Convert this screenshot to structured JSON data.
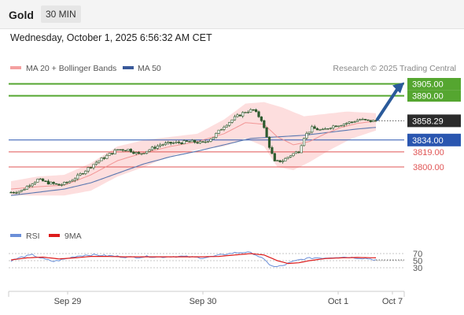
{
  "header": {
    "asset": "Gold",
    "timeframe": "30 MIN"
  },
  "datetime": "Wednesday, October 1, 2025 6:56:32 AM CET",
  "legend": {
    "ma20": "MA 20 + Bollinger Bands",
    "ma50": "MA 50",
    "credit": "Research © 2025 Trading Central"
  },
  "rsi_legend": {
    "rsi": "RSI",
    "ma": "9MA"
  },
  "colors": {
    "candle": "#2e5a2e",
    "bollinger": "#fcd3d3",
    "ma20": "#f08a8a",
    "ma50": "#5a78b0",
    "target": "#55a630",
    "support": "#e05555",
    "pivot": "#2a56b0",
    "arrow": "#2a5a9a",
    "rsi": "#6b8fd8",
    "rsi_ma": "#dd1c1c"
  },
  "chart_data": [
    {
      "type": "candlestick",
      "x_labels": [
        "Sep 29",
        "Sep 30",
        "Oct 1",
        "Oct 7"
      ],
      "ylim": [
        3755,
        3920
      ],
      "levels": [
        {
          "value": 3905.0,
          "label": "3905.00",
          "kind": "target"
        },
        {
          "value": 3890.0,
          "label": "3890.00",
          "kind": "target"
        },
        {
          "value": 3858.29,
          "label": "3858.29",
          "kind": "last"
        },
        {
          "value": 3834.0,
          "label": "3834.00",
          "kind": "pivot"
        },
        {
          "value": 3819.0,
          "label": "3819.00",
          "kind": "support"
        },
        {
          "value": 3800.0,
          "label": "3800.00",
          "kind": "support"
        }
      ],
      "close_anchors": [
        [
          0,
          3768
        ],
        [
          4,
          3770
        ],
        [
          7,
          3778
        ],
        [
          10,
          3784
        ],
        [
          14,
          3780
        ],
        [
          18,
          3777
        ],
        [
          21,
          3780
        ],
        [
          25,
          3788
        ],
        [
          28,
          3796
        ],
        [
          32,
          3806
        ],
        [
          36,
          3814
        ],
        [
          40,
          3822
        ],
        [
          44,
          3822
        ],
        [
          48,
          3816
        ],
        [
          52,
          3822
        ],
        [
          56,
          3828
        ],
        [
          60,
          3830
        ],
        [
          64,
          3831
        ],
        [
          68,
          3832
        ],
        [
          72,
          3830
        ],
        [
          76,
          3838
        ],
        [
          80,
          3852
        ],
        [
          84,
          3862
        ],
        [
          88,
          3870
        ],
        [
          91,
          3872
        ],
        [
          94,
          3860
        ],
        [
          97,
          3826
        ],
        [
          99,
          3806
        ],
        [
          102,
          3808
        ],
        [
          105,
          3815
        ],
        [
          108,
          3820
        ],
        [
          110,
          3838
        ],
        [
          113,
          3849
        ],
        [
          117,
          3846
        ],
        [
          120,
          3851
        ],
        [
          124,
          3854
        ],
        [
          128,
          3857
        ],
        [
          131,
          3860
        ],
        [
          134,
          3858
        ],
        [
          137,
          3858
        ]
      ],
      "ma20_points": [
        [
          0,
          3772
        ],
        [
          10,
          3775
        ],
        [
          20,
          3777
        ],
        [
          30,
          3790
        ],
        [
          40,
          3808
        ],
        [
          50,
          3818
        ],
        [
          60,
          3826
        ],
        [
          70,
          3832
        ],
        [
          80,
          3842
        ],
        [
          88,
          3856
        ],
        [
          95,
          3854
        ],
        [
          100,
          3838
        ],
        [
          106,
          3828
        ],
        [
          112,
          3832
        ],
        [
          118,
          3842
        ],
        [
          124,
          3850
        ],
        [
          130,
          3855
        ],
        [
          137,
          3858
        ]
      ],
      "ma50_points": [
        [
          0,
          3764
        ],
        [
          10,
          3768
        ],
        [
          20,
          3772
        ],
        [
          30,
          3780
        ],
        [
          40,
          3792
        ],
        [
          50,
          3804
        ],
        [
          60,
          3813
        ],
        [
          70,
          3820
        ],
        [
          80,
          3828
        ],
        [
          90,
          3836
        ],
        [
          100,
          3838
        ],
        [
          110,
          3840
        ],
        [
          120,
          3844
        ],
        [
          130,
          3848
        ],
        [
          137,
          3850
        ]
      ],
      "bb_upper": [
        [
          0,
          3782
        ],
        [
          10,
          3788
        ],
        [
          20,
          3790
        ],
        [
          30,
          3805
        ],
        [
          40,
          3826
        ],
        [
          50,
          3834
        ],
        [
          60,
          3838
        ],
        [
          70,
          3842
        ],
        [
          80,
          3860
        ],
        [
          88,
          3880
        ],
        [
          95,
          3882
        ],
        [
          102,
          3875
        ],
        [
          110,
          3864
        ],
        [
          118,
          3867
        ],
        [
          126,
          3870
        ],
        [
          137,
          3868
        ]
      ],
      "bb_lower": [
        [
          0,
          3764
        ],
        [
          10,
          3764
        ],
        [
          20,
          3764
        ],
        [
          30,
          3770
        ],
        [
          40,
          3788
        ],
        [
          50,
          3800
        ],
        [
          60,
          3814
        ],
        [
          70,
          3822
        ],
        [
          80,
          3826
        ],
        [
          88,
          3836
        ],
        [
          95,
          3826
        ],
        [
          100,
          3800
        ],
        [
          106,
          3796
        ],
        [
          112,
          3806
        ],
        [
          120,
          3822
        ],
        [
          128,
          3836
        ],
        [
          137,
          3846
        ]
      ]
    },
    {
      "type": "line",
      "name": "RSI",
      "ylim": [
        20,
        80
      ],
      "y_ticks": [
        30,
        50,
        70
      ],
      "rsi_points": [
        [
          0,
          50
        ],
        [
          4,
          60
        ],
        [
          8,
          66
        ],
        [
          12,
          55
        ],
        [
          16,
          48
        ],
        [
          20,
          54
        ],
        [
          24,
          62
        ],
        [
          28,
          66
        ],
        [
          32,
          66
        ],
        [
          36,
          64
        ],
        [
          40,
          62
        ],
        [
          44,
          60
        ],
        [
          48,
          60
        ],
        [
          52,
          62
        ],
        [
          56,
          60
        ],
        [
          60,
          62
        ],
        [
          64,
          62
        ],
        [
          68,
          60
        ],
        [
          72,
          58
        ],
        [
          76,
          62
        ],
        [
          80,
          68
        ],
        [
          84,
          72
        ],
        [
          88,
          74
        ],
        [
          91,
          70
        ],
        [
          94,
          58
        ],
        [
          97,
          40
        ],
        [
          99,
          32
        ],
        [
          102,
          36
        ],
        [
          105,
          45
        ],
        [
          108,
          52
        ],
        [
          111,
          56
        ],
        [
          114,
          58
        ],
        [
          118,
          58
        ],
        [
          122,
          60
        ],
        [
          126,
          60
        ],
        [
          130,
          58
        ],
        [
          134,
          56
        ],
        [
          137,
          52
        ]
      ],
      "ma_points": [
        [
          0,
          52
        ],
        [
          6,
          58
        ],
        [
          12,
          60
        ],
        [
          18,
          55
        ],
        [
          24,
          58
        ],
        [
          30,
          62
        ],
        [
          36,
          62
        ],
        [
          42,
          61
        ],
        [
          48,
          61
        ],
        [
          54,
          61
        ],
        [
          60,
          61
        ],
        [
          66,
          61
        ],
        [
          72,
          61
        ],
        [
          78,
          62
        ],
        [
          84,
          66
        ],
        [
          90,
          70
        ],
        [
          95,
          66
        ],
        [
          100,
          50
        ],
        [
          104,
          42
        ],
        [
          108,
          44
        ],
        [
          112,
          50
        ],
        [
          118,
          56
        ],
        [
          124,
          58
        ],
        [
          130,
          59
        ],
        [
          137,
          58
        ]
      ]
    }
  ]
}
